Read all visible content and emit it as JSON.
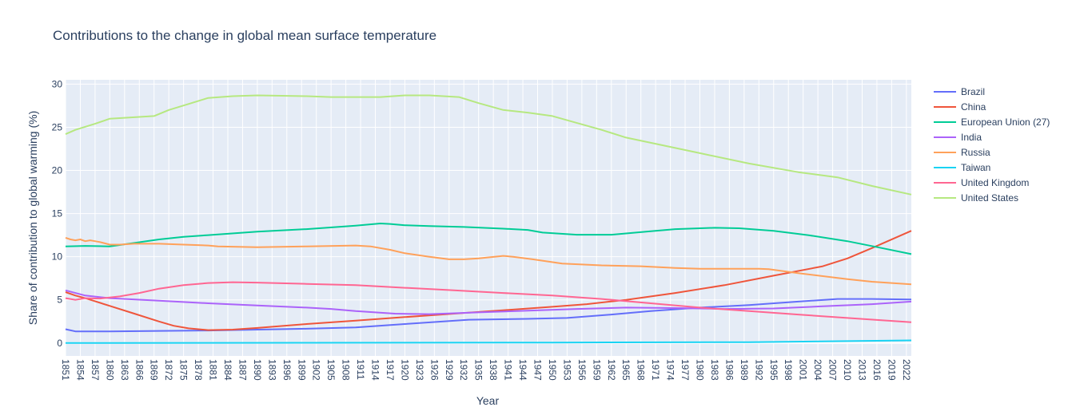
{
  "chart_data": {
    "type": "line",
    "title": "Contributions to the change in global mean surface temperature",
    "xlabel": "Year",
    "ylabel": "Share of contribution to global warming (%)",
    "xlim": [
      1851,
      2023
    ],
    "ylim": [
      -1.5,
      30.5
    ],
    "y_ticks": [
      0,
      5,
      10,
      15,
      20,
      25,
      30
    ],
    "x_tick_start": 1851,
    "x_tick_step": 3,
    "x_tick_end": 2022,
    "grid": true,
    "legend_position": "right",
    "series": [
      {
        "name": "Brazil",
        "color": "#636efa",
        "x": [
          1851,
          1853,
          1860,
          1870,
          1880,
          1890,
          1900,
          1910,
          1920,
          1933,
          1945,
          1953,
          1962,
          1970,
          1980,
          1990,
          2000,
          2008,
          2015,
          2023
        ],
        "y": [
          1.6,
          1.35,
          1.35,
          1.4,
          1.45,
          1.55,
          1.65,
          1.8,
          2.2,
          2.7,
          2.8,
          2.9,
          3.3,
          3.7,
          4.1,
          4.4,
          4.8,
          5.1,
          5.1,
          5.05
        ]
      },
      {
        "name": "China",
        "color": "#ef553b",
        "x": [
          1851,
          1853,
          1855,
          1860,
          1865,
          1870,
          1873,
          1876,
          1880,
          1885,
          1890,
          1900,
          1910,
          1920,
          1930,
          1940,
          1950,
          1957,
          1965,
          1975,
          1985,
          1995,
          2005,
          2010,
          2015,
          2023
        ],
        "y": [
          5.9,
          5.5,
          5.2,
          4.3,
          3.4,
          2.5,
          2.0,
          1.7,
          1.5,
          1.55,
          1.75,
          2.2,
          2.6,
          3.0,
          3.4,
          3.8,
          4.2,
          4.5,
          5.0,
          5.8,
          6.7,
          7.8,
          8.9,
          9.8,
          11.0,
          13.0
        ]
      },
      {
        "name": "European Union (27)",
        "color": "#00cc96",
        "x": [
          1851,
          1855,
          1860,
          1865,
          1870,
          1875,
          1880,
          1890,
          1900,
          1910,
          1915,
          1917,
          1920,
          1925,
          1932,
          1940,
          1945,
          1948,
          1955,
          1962,
          1970,
          1975,
          1983,
          1988,
          1995,
          2002,
          2010,
          2017,
          2023
        ],
        "y": [
          11.2,
          11.25,
          11.2,
          11.6,
          12.0,
          12.3,
          12.5,
          12.9,
          13.2,
          13.6,
          13.85,
          13.8,
          13.65,
          13.55,
          13.45,
          13.25,
          13.1,
          12.8,
          12.55,
          12.55,
          12.95,
          13.2,
          13.35,
          13.3,
          13.0,
          12.5,
          11.8,
          11.0,
          10.3
        ]
      },
      {
        "name": "India",
        "color": "#ab63fa",
        "x": [
          1851,
          1855,
          1860,
          1870,
          1880,
          1890,
          1900,
          1905,
          1910,
          1918,
          1925,
          1935,
          1945,
          1955,
          1965,
          1975,
          1985,
          1995,
          2005,
          2015,
          2023
        ],
        "y": [
          6.1,
          5.5,
          5.2,
          4.9,
          4.6,
          4.35,
          4.1,
          3.95,
          3.7,
          3.4,
          3.35,
          3.55,
          3.75,
          3.95,
          4.1,
          4.05,
          3.95,
          4.0,
          4.25,
          4.5,
          4.8
        ]
      },
      {
        "name": "Russia",
        "color": "#ffa15a",
        "x": [
          1851,
          1852,
          1853,
          1854,
          1855,
          1856,
          1857,
          1858,
          1860,
          1862,
          1865,
          1870,
          1875,
          1880,
          1882,
          1890,
          1900,
          1910,
          1913,
          1917,
          1920,
          1925,
          1929,
          1932,
          1935,
          1940,
          1942,
          1946,
          1952,
          1960,
          1968,
          1975,
          1980,
          1988,
          1992,
          1994,
          2000,
          2010,
          2015,
          2023
        ],
        "y": [
          12.2,
          12.0,
          11.9,
          12.0,
          11.8,
          11.9,
          11.8,
          11.7,
          11.4,
          11.4,
          11.5,
          11.5,
          11.4,
          11.3,
          11.2,
          11.1,
          11.2,
          11.3,
          11.2,
          10.8,
          10.4,
          10.0,
          9.7,
          9.7,
          9.8,
          10.1,
          10.0,
          9.7,
          9.2,
          9.0,
          8.9,
          8.7,
          8.6,
          8.6,
          8.6,
          8.55,
          8.1,
          7.4,
          7.1,
          6.8
        ]
      },
      {
        "name": "Taiwan",
        "color": "#19d3f3",
        "x": [
          1851,
          1900,
          1950,
          1990,
          2023
        ],
        "y": [
          0.0,
          0.03,
          0.05,
          0.1,
          0.3
        ]
      },
      {
        "name": "United Kingdom",
        "color": "#ff6692",
        "x": [
          1851,
          1853,
          1855,
          1858,
          1862,
          1866,
          1870,
          1875,
          1880,
          1885,
          1890,
          1900,
          1910,
          1920,
          1930,
          1940,
          1950,
          1960,
          1970,
          1980,
          1990,
          2000,
          2010,
          2023
        ],
        "y": [
          5.2,
          5.0,
          5.2,
          5.15,
          5.4,
          5.8,
          6.3,
          6.7,
          6.95,
          7.05,
          7.0,
          6.85,
          6.7,
          6.4,
          6.1,
          5.8,
          5.5,
          5.1,
          4.6,
          4.1,
          3.7,
          3.3,
          2.9,
          2.4
        ]
      },
      {
        "name": "United States",
        "color": "#b6e880",
        "x": [
          1851,
          1853,
          1857,
          1860,
          1863,
          1866,
          1869,
          1872,
          1876,
          1880,
          1885,
          1890,
          1895,
          1900,
          1905,
          1910,
          1915,
          1920,
          1925,
          1931,
          1935,
          1940,
          1945,
          1950,
          1955,
          1960,
          1965,
          1970,
          1980,
          1990,
          2000,
          2008,
          2015,
          2023
        ],
        "y": [
          24.2,
          24.7,
          25.4,
          26.0,
          26.1,
          26.2,
          26.3,
          27.0,
          27.7,
          28.4,
          28.6,
          28.7,
          28.65,
          28.6,
          28.5,
          28.5,
          28.5,
          28.7,
          28.7,
          28.5,
          27.8,
          27.0,
          26.7,
          26.3,
          25.5,
          24.7,
          23.8,
          23.2,
          22.0,
          20.8,
          19.8,
          19.2,
          18.2,
          17.2
        ]
      }
    ]
  }
}
